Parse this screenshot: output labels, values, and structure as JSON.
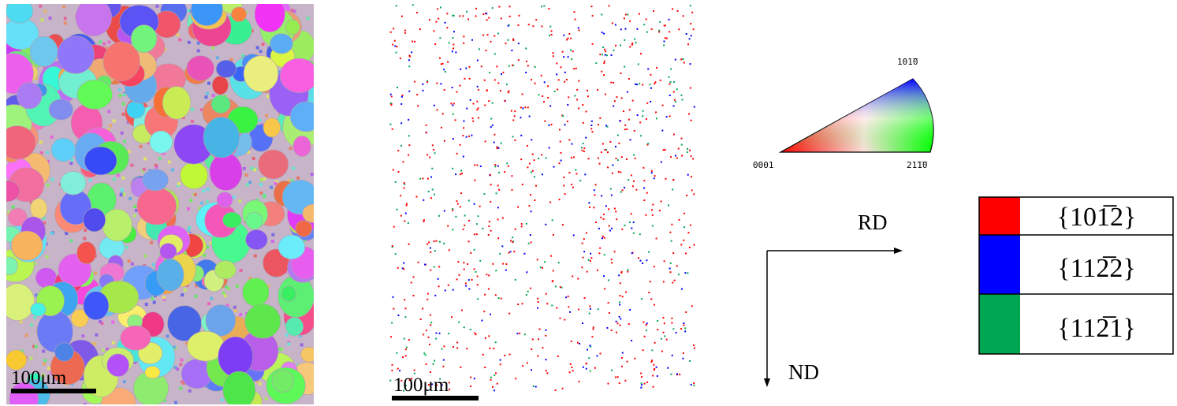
{
  "panels": [
    {
      "scale_bar": "100μm"
    },
    {
      "scale_bar": "100μm"
    }
  ],
  "ipf": {
    "corners": [
      "0001",
      "21̅1̅0",
      "101̅0"
    ]
  },
  "axes": {
    "horizontal": "RD",
    "vertical": "ND"
  },
  "legend": {
    "rows": [
      "{101̅2}",
      "{112̅2}",
      "{112̅1}"
    ]
  }
}
